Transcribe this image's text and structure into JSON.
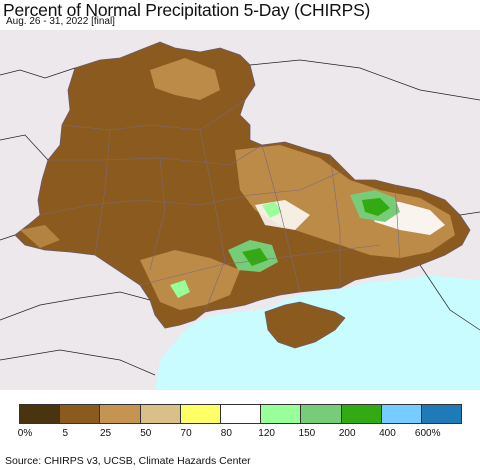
{
  "title": "Percent of Normal Precipitation 5-Day (CHIRPS)",
  "subtitle": "Aug. 26 - 31, 2022 [final]",
  "legend": {
    "colors": [
      "#4a3410",
      "#8b5a1e",
      "#c49450",
      "#d8c088",
      "#ffff66",
      "#ffffff",
      "#99ff99",
      "#77cc77",
      "#33aa11",
      "#77ccff",
      "#1f7ab8"
    ],
    "labels": [
      "0%",
      "5",
      "25",
      "50",
      "70",
      "80",
      "120",
      "150",
      "200",
      "400",
      "600%"
    ]
  },
  "source": "Source: CHIRPS v3, UCSB, Climate Hazards Center",
  "map_colors": {
    "background": "#ece8ec",
    "sea": "#c8fcff",
    "dominant": "#8b5a1e",
    "lighter": "#c49450",
    "border": "#7a6a7a"
  }
}
